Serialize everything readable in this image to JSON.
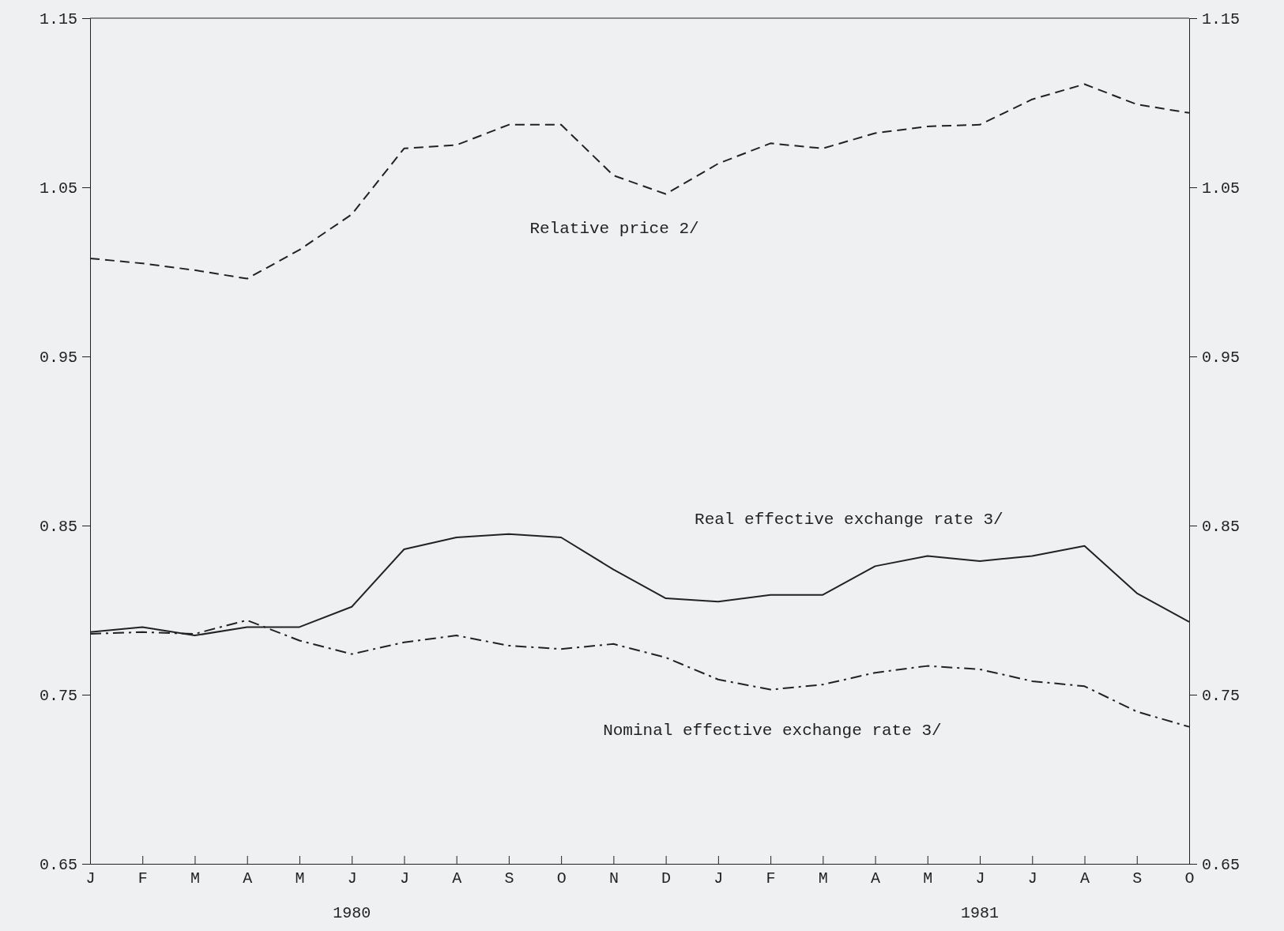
{
  "chart_data": {
    "type": "line",
    "categories": [
      "J",
      "F",
      "M",
      "A",
      "M",
      "J",
      "J",
      "A",
      "S",
      "O",
      "N",
      "D",
      "J",
      "F",
      "M",
      "A",
      "M",
      "J",
      "J",
      "A",
      "S",
      "O"
    ],
    "ylim": [
      0.65,
      1.15
    ],
    "yticks": [
      0.65,
      0.75,
      0.85,
      0.95,
      1.05,
      1.15
    ],
    "y2lim": [
      0.65,
      1.15
    ],
    "y2ticks": [
      0.65,
      0.75,
      0.85,
      0.95,
      1.05,
      1.15
    ],
    "series": [
      {
        "name": "Relative price 2/",
        "color": "#222222",
        "line_style": "dashed",
        "values": [
          1.008,
          1.005,
          1.001,
          0.996,
          1.013,
          1.034,
          1.073,
          1.075,
          1.087,
          1.087,
          1.057,
          1.046,
          1.064,
          1.076,
          1.073,
          1.082,
          1.086,
          1.087,
          1.102,
          1.111,
          1.099,
          1.094
        ]
      },
      {
        "name": "Real effective exchange rate 3/",
        "color": "#222222",
        "line_style": "solid",
        "values": [
          0.787,
          0.79,
          0.785,
          0.79,
          0.79,
          0.802,
          0.836,
          0.843,
          0.845,
          0.843,
          0.824,
          0.807,
          0.805,
          0.809,
          0.809,
          0.826,
          0.832,
          0.829,
          0.832,
          0.838,
          0.81,
          0.793
        ]
      },
      {
        "name": "Nominal effective exchange rate 3/",
        "color": "#222222",
        "line_style": "dashdot",
        "values": [
          0.786,
          0.787,
          0.786,
          0.794,
          0.782,
          0.774,
          0.781,
          0.785,
          0.779,
          0.777,
          0.78,
          0.772,
          0.759,
          0.753,
          0.756,
          0.763,
          0.767,
          0.765,
          0.758,
          0.755,
          0.74,
          0.731
        ]
      }
    ],
    "annotations": [
      "1980",
      "1981"
    ],
    "grid": false,
    "legend": false,
    "marker": "none"
  }
}
